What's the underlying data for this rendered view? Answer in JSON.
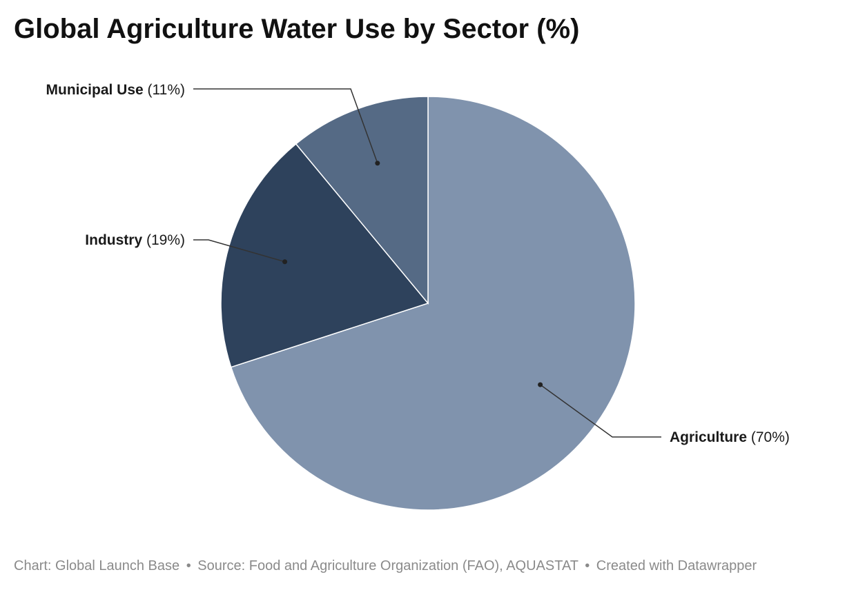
{
  "chart_data": {
    "type": "pie",
    "title": "Global Agriculture Water Use by Sector (%)",
    "slices": [
      {
        "label": "Agriculture",
        "value": 70,
        "display": "(70%)",
        "color": "#8093ad"
      },
      {
        "label": "Industry",
        "value": 19,
        "display": "(19%)",
        "color": "#2e425c"
      },
      {
        "label": "Municipal Use",
        "value": 11,
        "display": "(11%)",
        "color": "#556a85"
      }
    ],
    "legend": "none",
    "label_style": "callout"
  },
  "footer": {
    "credit": "Chart: Global Launch Base",
    "source": "Source: Food and Agriculture Organization (FAO), AQUASTAT",
    "tool": "Created with Datawrapper",
    "separator": "•"
  }
}
